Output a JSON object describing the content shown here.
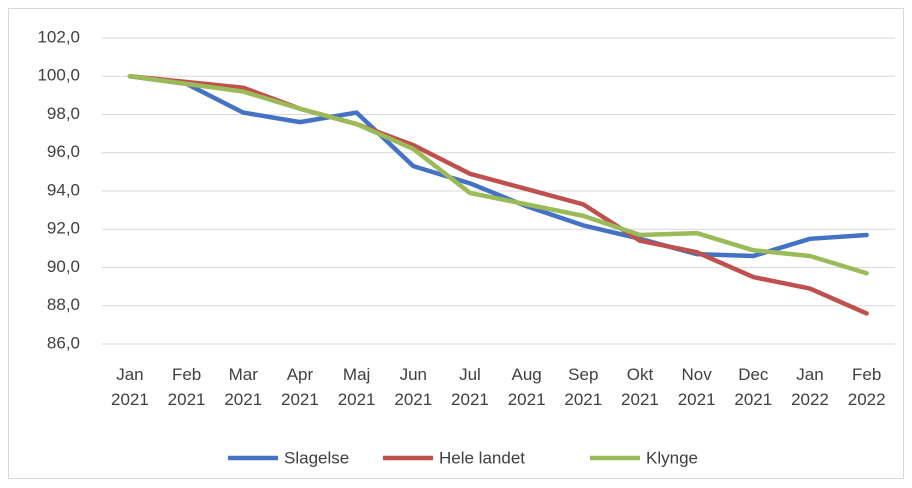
{
  "chart_data": {
    "type": "line",
    "categories": [
      "Jan 2021",
      "Feb 2021",
      "Mar 2021",
      "Apr 2021",
      "Maj 2021",
      "Jun 2021",
      "Jul 2021",
      "Aug 2021",
      "Sep 2021",
      "Okt 2021",
      "Nov 2021",
      "Dec 2021",
      "Jan 2022",
      "Feb 2022"
    ],
    "series": [
      {
        "name": "Slagelse",
        "color": "#4472c4",
        "values": [
          100,
          99.6,
          98.1,
          97.6,
          98.1,
          95.3,
          94.4,
          93.2,
          92.2,
          91.5,
          90.7,
          90.6,
          91.5,
          91.7
        ]
      },
      {
        "name": "Hele landet",
        "color": "#c0504d",
        "values": [
          100,
          99.7,
          99.4,
          98.3,
          97.5,
          96.4,
          94.9,
          94.1,
          93.3,
          91.4,
          90.8,
          89.5,
          88.9,
          87.6
        ]
      },
      {
        "name": "Klynge",
        "color": "#9bbb59",
        "values": [
          100,
          99.6,
          99.2,
          98.3,
          97.5,
          96.2,
          93.9,
          93.3,
          92.7,
          91.7,
          91.8,
          90.9,
          90.6,
          89.7
        ]
      }
    ],
    "ylim": [
      86,
      102
    ],
    "yticks": [
      {
        "value": 86,
        "label": "86,0"
      },
      {
        "value": 88,
        "label": "88,0"
      },
      {
        "value": 90,
        "label": "90,0"
      },
      {
        "value": 92,
        "label": "92,0"
      },
      {
        "value": 94,
        "label": "94,0"
      },
      {
        "value": 96,
        "label": "96,0"
      },
      {
        "value": 98,
        "label": "98,0"
      },
      {
        "value": 100,
        "label": "100,0"
      },
      {
        "value": 102,
        "label": "102,0"
      }
    ],
    "grid": true,
    "legend": "bottom"
  }
}
